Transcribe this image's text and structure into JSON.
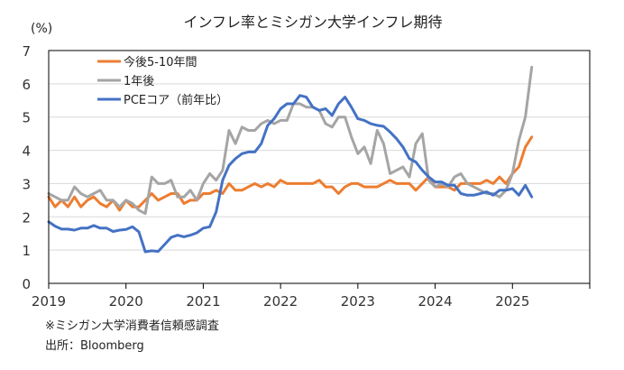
{
  "chart_data": {
    "type": "line",
    "title": "インフレ率とミシガン大学インフレ期待",
    "ylabel": "(%)",
    "xlabel": "",
    "ylim": [
      0,
      7
    ],
    "yticks": [
      "0",
      "1",
      "2",
      "3",
      "4",
      "5",
      "6",
      "7"
    ],
    "xlim": [
      "2019-01",
      "2026-01"
    ],
    "xticks": [
      "2019",
      "2020",
      "2021",
      "2022",
      "2023",
      "2024",
      "2025"
    ],
    "grid": "horizontal",
    "legend_position": "top-left",
    "x_start": "2019-01",
    "x_frequency": "monthly",
    "series": [
      {
        "name": "今後5-10年間",
        "color": "#ED7D31",
        "values": [
          2.6,
          2.3,
          2.5,
          2.3,
          2.6,
          2.3,
          2.5,
          2.6,
          2.4,
          2.3,
          2.5,
          2.2,
          2.5,
          2.3,
          2.3,
          2.5,
          2.7,
          2.5,
          2.6,
          2.7,
          2.7,
          2.4,
          2.5,
          2.5,
          2.7,
          2.7,
          2.8,
          2.7,
          3.0,
          2.8,
          2.8,
          2.9,
          3.0,
          2.9,
          3.0,
          2.9,
          3.1,
          3.0,
          3.0,
          3.0,
          3.0,
          3.0,
          3.1,
          2.9,
          2.9,
          2.7,
          2.9,
          3.0,
          3.0,
          2.9,
          2.9,
          2.9,
          3.0,
          3.1,
          3.0,
          3.0,
          3.0,
          2.8,
          3.0,
          3.2,
          2.9,
          2.9,
          2.9,
          2.8,
          3.0,
          3.0,
          3.0,
          3.0,
          3.1,
          3.0,
          3.2,
          3.0,
          3.3,
          3.5,
          4.1,
          4.4
        ]
      },
      {
        "name": "1年後",
        "color": "#A5A5A5",
        "values": [
          2.7,
          2.6,
          2.5,
          2.5,
          2.9,
          2.7,
          2.6,
          2.7,
          2.8,
          2.5,
          2.5,
          2.3,
          2.5,
          2.4,
          2.2,
          2.1,
          3.2,
          3.0,
          3.0,
          3.1,
          2.6,
          2.6,
          2.8,
          2.5,
          3.0,
          3.3,
          3.1,
          3.4,
          4.6,
          4.2,
          4.7,
          4.6,
          4.6,
          4.8,
          4.9,
          4.8,
          4.9,
          4.9,
          5.4,
          5.4,
          5.3,
          5.3,
          5.2,
          4.8,
          4.7,
          5.0,
          5.0,
          4.4,
          3.9,
          4.1,
          3.6,
          4.6,
          4.2,
          3.3,
          3.4,
          3.5,
          3.2,
          4.2,
          4.5,
          3.1,
          2.9,
          3.0,
          2.9,
          3.2,
          3.3,
          3.0,
          2.9,
          2.8,
          2.7,
          2.7,
          2.6,
          2.8,
          3.3,
          4.3,
          5.0,
          6.5
        ]
      },
      {
        "name": "PCEコア（前年比）",
        "color": "#4472C4",
        "values": [
          1.85,
          1.72,
          1.63,
          1.63,
          1.6,
          1.66,
          1.66,
          1.74,
          1.66,
          1.66,
          1.56,
          1.6,
          1.62,
          1.7,
          1.55,
          0.95,
          0.98,
          0.96,
          1.17,
          1.38,
          1.45,
          1.4,
          1.45,
          1.52,
          1.66,
          1.7,
          2.15,
          3.1,
          3.55,
          3.75,
          3.9,
          3.95,
          3.95,
          4.2,
          4.75,
          4.95,
          5.25,
          5.4,
          5.4,
          5.65,
          5.6,
          5.3,
          5.2,
          5.25,
          5.05,
          5.4,
          5.6,
          5.3,
          4.95,
          4.9,
          4.8,
          4.75,
          4.72,
          4.55,
          4.35,
          4.1,
          3.75,
          3.65,
          3.4,
          3.2,
          3.05,
          3.05,
          2.95,
          2.95,
          2.7,
          2.65,
          2.65,
          2.7,
          2.75,
          2.65,
          2.8,
          2.8,
          2.85,
          2.65,
          2.95,
          2.6
        ]
      }
    ]
  },
  "notes": {
    "survey_note": "※ミシガン大学消費者信頼感調査",
    "source": "出所：Bloomberg"
  }
}
